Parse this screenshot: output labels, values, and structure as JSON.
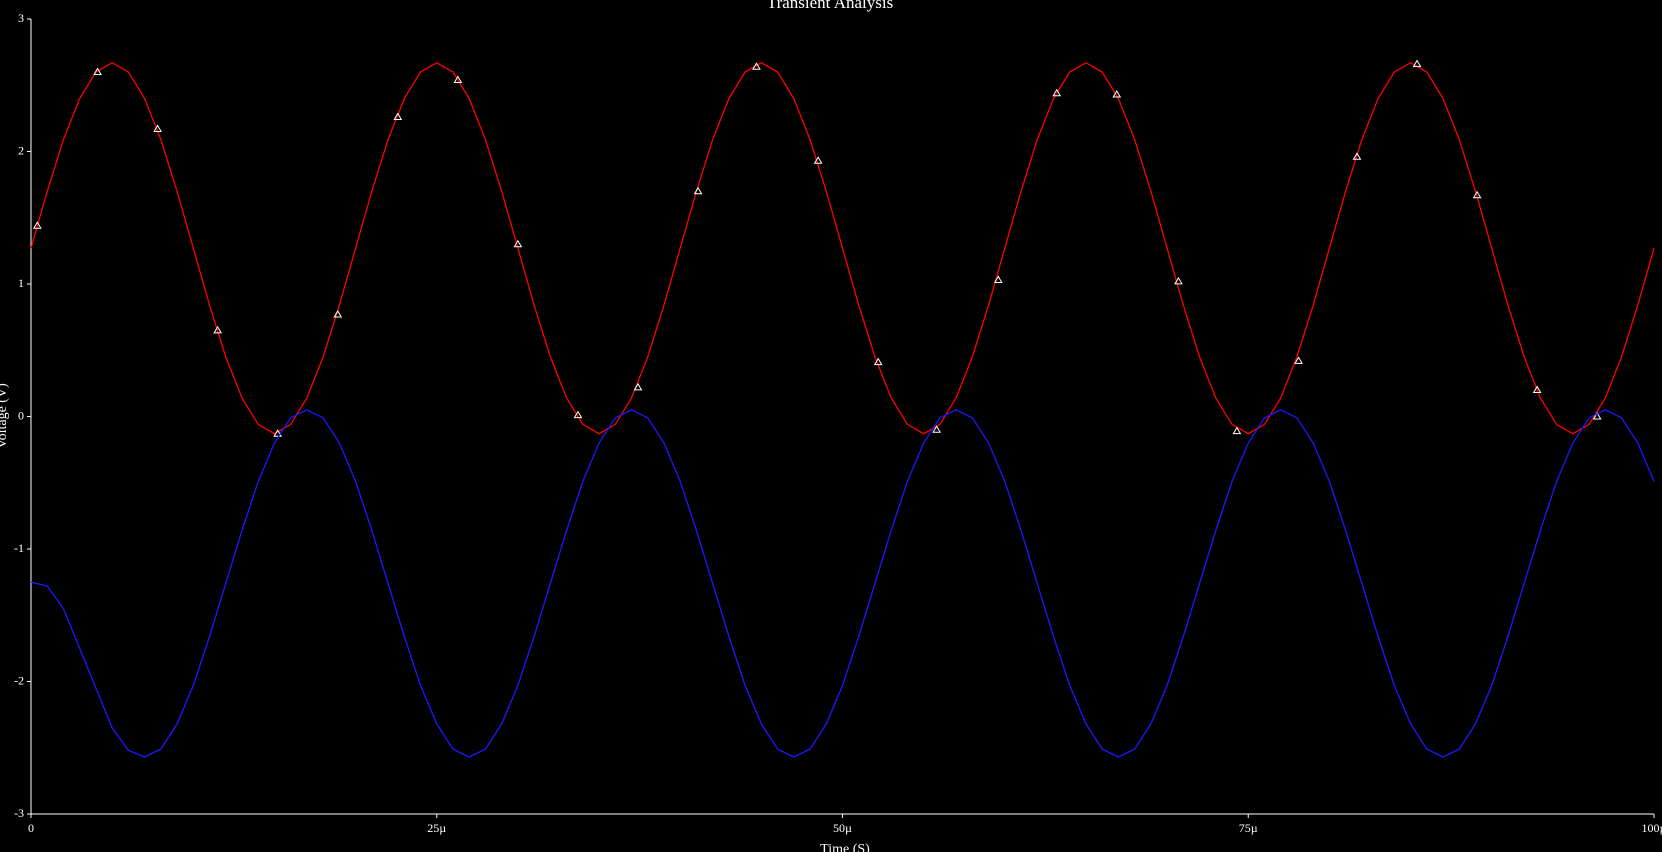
{
  "chart_data": {
    "type": "line",
    "title": "Transient Analysis",
    "x_label": "Time (S)",
    "y_label": "Voltage (V)",
    "xlim": [
      0,
      0.0001
    ],
    "ylim": [
      -3,
      3
    ],
    "xticks": [
      0,
      {
        "value": 2.5e-05,
        "label": "25µ"
      },
      {
        "value": 5e-05,
        "label": "50µ"
      },
      {
        "value": 7.5e-05,
        "label": "75µ"
      },
      {
        "value": 0.0001,
        "label": "100µ"
      }
    ],
    "yticks": [
      -3,
      -2,
      -1,
      0,
      1,
      2,
      3
    ],
    "x": [
      0,
      1e-06,
      2e-06,
      3e-06,
      4e-06,
      5e-06,
      6e-06,
      7e-06,
      8e-06,
      9e-06,
      1e-05,
      1.1e-05,
      1.2e-05,
      1.3e-05,
      1.4e-05,
      1.5e-05,
      1.6e-05,
      1.7e-05,
      1.8e-05,
      1.9e-05,
      2e-05,
      2.1e-05,
      2.2e-05,
      2.3e-05,
      2.4e-05,
      2.5e-05,
      2.6e-05,
      2.7e-05,
      2.8e-05,
      2.9e-05,
      3e-05,
      3.1e-05,
      3.2e-05,
      3.3e-05,
      3.4e-05,
      3.5e-05,
      3.6e-05,
      3.7e-05,
      3.8e-05,
      3.9e-05,
      4e-05,
      4.1e-05,
      4.2e-05,
      4.3e-05,
      4.4e-05,
      4.5e-05,
      4.6e-05,
      4.7e-05,
      4.8e-05,
      4.9e-05,
      5e-05,
      5.1e-05,
      5.2e-05,
      5.3e-05,
      5.4e-05,
      5.5e-05,
      5.6e-05,
      5.7e-05,
      5.8e-05,
      5.9e-05,
      6e-05,
      6.1e-05,
      6.2e-05,
      6.3e-05,
      6.4e-05,
      6.5e-05,
      6.6e-05,
      6.7e-05,
      6.8e-05,
      6.9e-05,
      7e-05,
      7.1e-05,
      7.2e-05,
      7.3e-05,
      7.4e-05,
      7.5e-05,
      7.6e-05,
      7.7e-05,
      7.8e-05,
      7.9e-05,
      8e-05,
      8.1e-05,
      8.2e-05,
      8.3e-05,
      8.4e-05,
      8.5e-05,
      8.6e-05,
      8.7e-05,
      8.8e-05,
      8.9e-05,
      9e-05,
      9.1e-05,
      9.2e-05,
      9.3e-05,
      9.4e-05,
      9.5e-05,
      9.6e-05,
      9.7e-05,
      9.8e-05,
      9.9e-05,
      0.0001
    ],
    "series": [
      {
        "color": "#ff0000",
        "values": [
          1.27,
          1.7,
          2.09,
          2.4,
          2.6,
          2.67,
          2.6,
          2.4,
          2.09,
          1.7,
          1.27,
          0.84,
          0.45,
          0.14,
          -0.06,
          -0.13,
          -0.06,
          0.14,
          0.45,
          0.84,
          1.27,
          1.7,
          2.09,
          2.4,
          2.6,
          2.67,
          2.6,
          2.4,
          2.09,
          1.7,
          1.27,
          0.84,
          0.45,
          0.14,
          -0.06,
          -0.13,
          -0.06,
          0.14,
          0.45,
          0.84,
          1.27,
          1.7,
          2.09,
          2.4,
          2.6,
          2.67,
          2.6,
          2.4,
          2.09,
          1.7,
          1.27,
          0.84,
          0.45,
          0.14,
          -0.06,
          -0.13,
          -0.06,
          0.14,
          0.45,
          0.84,
          1.27,
          1.7,
          2.09,
          2.4,
          2.6,
          2.67,
          2.6,
          2.4,
          2.09,
          1.7,
          1.27,
          0.84,
          0.45,
          0.14,
          -0.06,
          -0.13,
          -0.06,
          0.14,
          0.45,
          0.84,
          1.27,
          1.7,
          2.09,
          2.4,
          2.6,
          2.67,
          2.6,
          2.4,
          2.09,
          1.7,
          1.27,
          0.84,
          0.45,
          0.14,
          -0.06,
          -0.13,
          -0.06,
          0.14,
          0.45,
          0.84,
          1.27
        ],
        "markers": {
          "color": "#ffffff",
          "x": [
            3.9e-07,
            4.1e-06,
            7.8e-06,
            1.15e-05,
            1.52e-05,
            1.89e-05,
            2.26e-05,
            2.63e-05,
            3e-05,
            3.37e-05,
            3.74e-05,
            4.11e-05,
            4.47e-05,
            4.85e-05,
            5.22e-05,
            5.58e-05,
            5.96e-05,
            6.32e-05,
            6.69e-05,
            7.07e-05,
            7.43e-05,
            7.81e-05,
            8.17e-05,
            8.54e-05,
            8.91e-05,
            9.28e-05,
            9.65e-05
          ],
          "values": [
            1.44,
            2.6,
            2.17,
            0.65,
            -0.13,
            0.77,
            2.26,
            2.54,
            1.3,
            0.01,
            0.22,
            1.7,
            2.64,
            1.93,
            0.41,
            -0.1,
            1.03,
            2.44,
            2.43,
            1.02,
            -0.11,
            0.42,
            1.96,
            2.66,
            1.67,
            0.2,
            0.0
          ]
        }
      },
      {
        "color": "#1a1aff",
        "values": [
          -1.25,
          -1.28,
          -1.45,
          -1.75,
          -2.05,
          -2.35,
          -2.52,
          -2.57,
          -2.51,
          -2.32,
          -2.03,
          -1.66,
          -1.26,
          -0.86,
          -0.49,
          -0.2,
          -0.01,
          0.05,
          -0.01,
          -0.2,
          -0.49,
          -0.86,
          -1.26,
          -1.66,
          -2.03,
          -2.32,
          -2.51,
          -2.57,
          -2.51,
          -2.32,
          -2.03,
          -1.66,
          -1.26,
          -0.86,
          -0.49,
          -0.2,
          -0.01,
          0.05,
          -0.01,
          -0.2,
          -0.49,
          -0.86,
          -1.26,
          -1.66,
          -2.03,
          -2.32,
          -2.51,
          -2.57,
          -2.51,
          -2.32,
          -2.03,
          -1.66,
          -1.26,
          -0.86,
          -0.49,
          -0.2,
          -0.01,
          0.05,
          -0.01,
          -0.2,
          -0.49,
          -0.86,
          -1.26,
          -1.66,
          -2.03,
          -2.32,
          -2.51,
          -2.57,
          -2.51,
          -2.32,
          -2.03,
          -1.66,
          -1.26,
          -0.86,
          -0.49,
          -0.2,
          -0.01,
          0.05,
          -0.01,
          -0.2,
          -0.49,
          -0.86,
          -1.26,
          -1.66,
          -2.03,
          -2.32,
          -2.51,
          -2.57,
          -2.51,
          -2.32,
          -2.03,
          -1.66,
          -1.26,
          -0.86,
          -0.49,
          -0.2,
          -0.01,
          0.05,
          -0.01,
          -0.2,
          -0.49
        ]
      }
    ]
  }
}
